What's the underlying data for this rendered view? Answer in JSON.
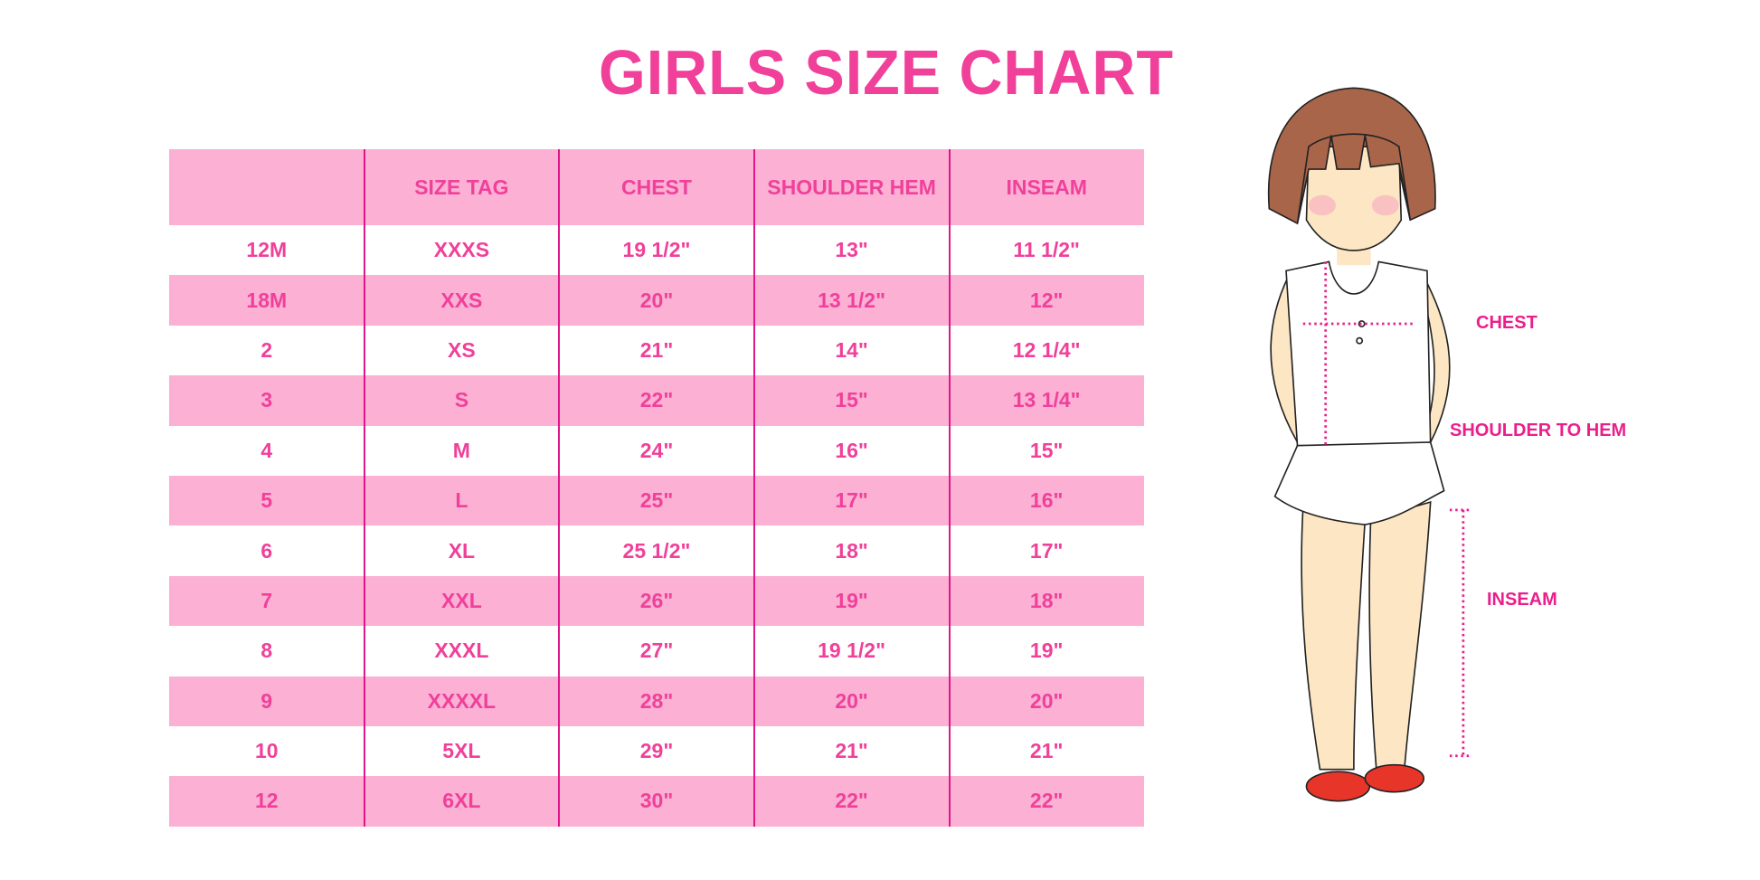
{
  "title": "GIRLS SIZE CHART",
  "colors": {
    "accent": "#f0409a",
    "accent2": "#ea1f8c",
    "pink": "#fbb0d4",
    "line": "#e0158a",
    "hair": "#a8654a",
    "skin": "#fde6c4",
    "shoes": "#e8352a"
  },
  "table": {
    "headers": [
      "",
      "SIZE TAG",
      "CHEST",
      "SHOULDER HEM",
      "INSEAM"
    ],
    "rows": [
      [
        "12M",
        "XXXS",
        "19 1/2\"",
        "13\"",
        "11 1/2\""
      ],
      [
        "18M",
        "XXS",
        "20\"",
        "13 1/2\"",
        "12\""
      ],
      [
        "2",
        "XS",
        "21\"",
        "14\"",
        "12 1/4\""
      ],
      [
        "3",
        "S",
        "22\"",
        "15\"",
        "13 1/4\""
      ],
      [
        "4",
        "M",
        "24\"",
        "16\"",
        "15\""
      ],
      [
        "5",
        "L",
        "25\"",
        "17\"",
        "16\""
      ],
      [
        "6",
        "XL",
        "25 1/2\"",
        "18\"",
        "17\""
      ],
      [
        "7",
        "XXL",
        "26\"",
        "19\"",
        "18\""
      ],
      [
        "8",
        "XXXL",
        "27\"",
        "19 1/2\"",
        "19\""
      ],
      [
        "9",
        "XXXXL",
        "28\"",
        "20\"",
        "20\""
      ],
      [
        "10",
        "5XL",
        "29\"",
        "21\"",
        "21\""
      ],
      [
        "12",
        "6XL",
        "30\"",
        "22\"",
        "22\""
      ]
    ]
  },
  "figure": {
    "labels": {
      "chest": "CHEST",
      "shoulder_to_hem": "SHOULDER TO HEM",
      "inseam": "INSEAM"
    }
  }
}
